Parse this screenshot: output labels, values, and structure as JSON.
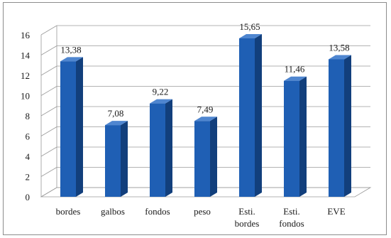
{
  "chart_data": {
    "type": "bar",
    "categories": [
      [
        "bordes"
      ],
      [
        "galbos"
      ],
      [
        "fondos"
      ],
      [
        "peso"
      ],
      [
        "Esti.",
        "bordes"
      ],
      [
        "Esti.",
        "fondos"
      ],
      [
        "EVE"
      ]
    ],
    "values": [
      13.38,
      7.08,
      9.22,
      7.49,
      15.65,
      11.46,
      13.58
    ],
    "data_labels": [
      "13,38",
      "7,08",
      "9,22",
      "7,49",
      "15,65",
      "11,46",
      "13,58"
    ],
    "ylim": [
      0,
      16
    ],
    "yticks": [
      0,
      2,
      4,
      6,
      8,
      10,
      12,
      14,
      16
    ],
    "grid": true,
    "style": "3d-column",
    "colors": {
      "bar_front": "#1f5fb4",
      "bar_side": "#123f7c",
      "bar_top": "#4f86d0",
      "gridline": "#9a9a9a"
    }
  }
}
